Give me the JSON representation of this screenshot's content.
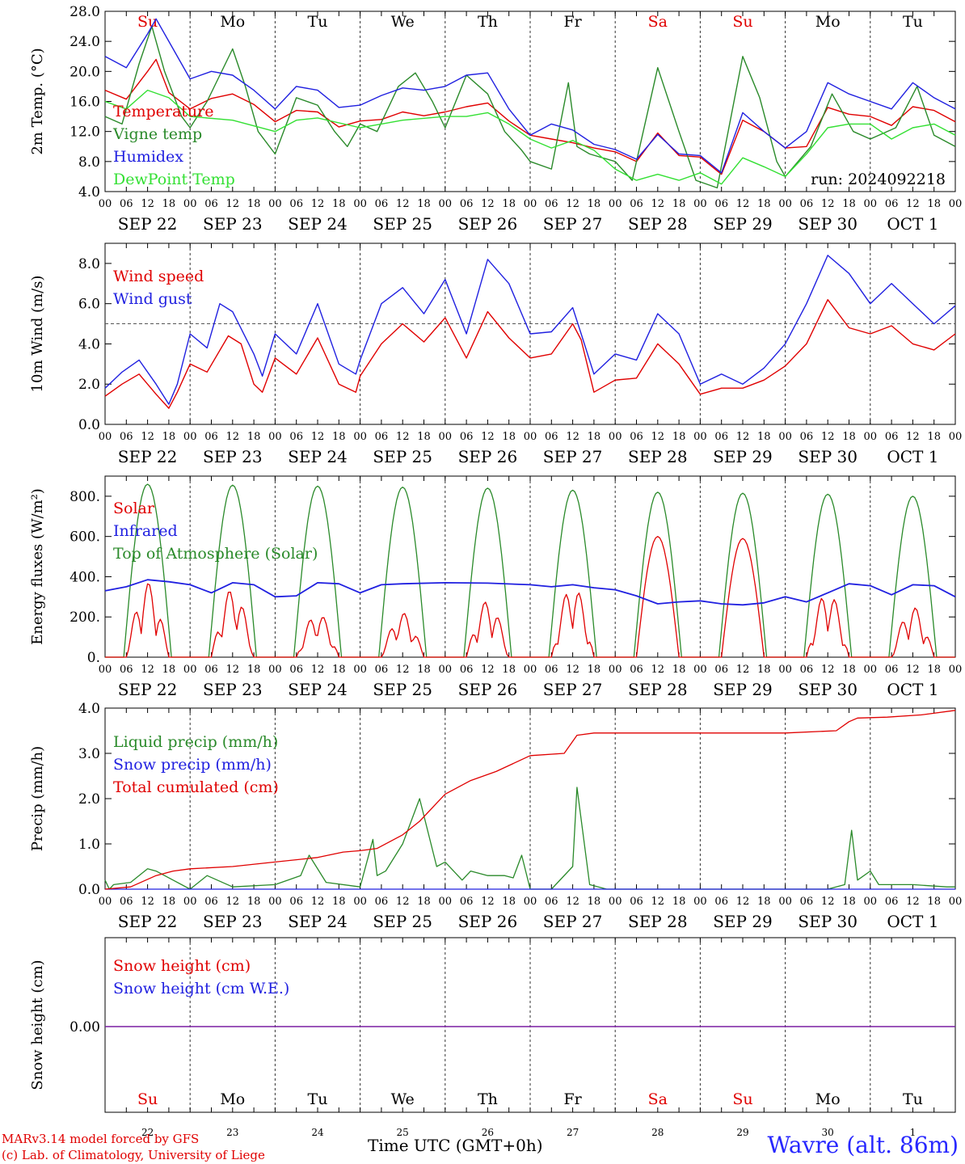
{
  "days": {
    "weekdays": [
      "Su",
      "Mo",
      "Tu",
      "We",
      "Th",
      "Fr",
      "Sa",
      "Su",
      "Mo",
      "Tu"
    ],
    "weekend_flags": [
      true,
      false,
      false,
      false,
      false,
      false,
      true,
      true,
      false,
      false
    ],
    "dates": [
      "SEP 22",
      "SEP 23",
      "SEP 24",
      "SEP 25",
      "SEP 26",
      "SEP 27",
      "SEP 28",
      "SEP 29",
      "SEP 30",
      "OCT  1"
    ],
    "day_numbers": [
      "22",
      "23",
      "24",
      "25",
      "26",
      "27",
      "28",
      "29",
      "30",
      "1"
    ],
    "hour_ticks": [
      "00",
      "06",
      "12",
      "18"
    ],
    "final_hour": "00"
  },
  "colors": {
    "red": "#e00000",
    "green": "#2a8a2a",
    "blue": "#2020e0",
    "lightgreen": "#33e033",
    "purple": "#7a1fa2"
  },
  "run_label": "run: 2024092218",
  "footer": {
    "credit_line1": "MARv3.14 model forced by GFS",
    "credit_line2": "(c) Lab. of Climatology, University of Liege",
    "time_label": "Time UTC (GMT+0h)",
    "station": "Wavre (alt. 86m)"
  },
  "chart_data": [
    {
      "type": "line",
      "ylabel": "2m Temp. (°C)",
      "ylim": [
        4,
        28
      ],
      "yticks": [
        "28.0",
        "24.0",
        "20.0",
        "16.0",
        "12.0",
        "8.0",
        "4.0"
      ],
      "x_unit": "days since SEP 22 00 UTC",
      "series": [
        {
          "name": "Temperature",
          "color": "red",
          "x": [
            0,
            0.25,
            0.5,
            0.6,
            0.75,
            1.0,
            1.25,
            1.5,
            1.75,
            2.0,
            2.25,
            2.5,
            2.75,
            3.0,
            3.25,
            3.5,
            3.75,
            4.0,
            4.25,
            4.5,
            4.75,
            5.0,
            5.25,
            5.5,
            5.75,
            6.0,
            6.25,
            6.5,
            6.75,
            7.0,
            7.25,
            7.5,
            7.75,
            8.0,
            8.25,
            8.5,
            8.75,
            9.0,
            9.25,
            9.5,
            9.75,
            10.0
          ],
          "values": [
            17.5,
            16.3,
            20.0,
            21.6,
            17.2,
            15.0,
            16.4,
            17.0,
            15.6,
            13.3,
            14.8,
            14.6,
            12.6,
            13.4,
            13.6,
            14.6,
            14.1,
            14.6,
            15.3,
            15.8,
            13.4,
            11.5,
            11.0,
            10.5,
            9.8,
            9.3,
            8.0,
            11.8,
            8.8,
            8.6,
            6.3,
            13.5,
            12.0,
            9.8,
            10.0,
            15.2,
            14.3,
            14.0,
            12.8,
            15.3,
            14.8,
            13.3
          ]
        },
        {
          "name": "Vigne temp",
          "color": "green",
          "x": [
            0,
            0.2,
            0.4,
            0.55,
            0.7,
            0.9,
            1.0,
            1.2,
            1.5,
            1.65,
            1.8,
            2.0,
            2.25,
            2.5,
            2.7,
            2.85,
            3.0,
            3.2,
            3.45,
            3.65,
            3.85,
            4.0,
            4.25,
            4.5,
            4.7,
            4.9,
            5.0,
            5.25,
            5.45,
            5.55,
            5.7,
            6.0,
            6.2,
            6.5,
            6.75,
            6.95,
            7.2,
            7.5,
            7.7,
            7.9,
            8.0,
            8.3,
            8.55,
            8.8,
            9.0,
            9.3,
            9.55,
            9.75,
            10.0
          ],
          "values": [
            14.0,
            13.0,
            21.0,
            26.0,
            20.0,
            14.0,
            12.5,
            16.0,
            23.0,
            18.0,
            12.0,
            9.0,
            16.5,
            15.5,
            12.0,
            10.0,
            13.0,
            12.0,
            18.0,
            19.8,
            16.0,
            12.5,
            19.5,
            17.0,
            12.0,
            9.5,
            8.0,
            7.0,
            18.5,
            10.0,
            9.0,
            8.0,
            5.5,
            20.5,
            12.0,
            5.5,
            4.5,
            22.0,
            16.5,
            8.0,
            6.0,
            10.0,
            17.0,
            12.0,
            11.0,
            12.5,
            18.0,
            11.5,
            10.0
          ]
        },
        {
          "name": "Humidex",
          "color": "blue",
          "x": [
            0,
            0.25,
            0.5,
            0.6,
            0.8,
            1.0,
            1.25,
            1.5,
            1.75,
            2.0,
            2.25,
            2.5,
            2.75,
            3.0,
            3.25,
            3.5,
            3.75,
            4.0,
            4.25,
            4.5,
            4.75,
            5.0,
            5.25,
            5.5,
            5.75,
            6.0,
            6.25,
            6.5,
            6.75,
            7.0,
            7.25,
            7.5,
            7.75,
            8.0,
            8.25,
            8.5,
            8.75,
            9.0,
            9.25,
            9.5,
            9.75,
            10.0
          ],
          "values": [
            22.0,
            20.5,
            25.0,
            27.0,
            23.0,
            19.0,
            20.0,
            19.5,
            17.5,
            15.0,
            18.0,
            17.5,
            15.2,
            15.5,
            16.8,
            17.8,
            17.5,
            18.0,
            19.5,
            19.8,
            15.0,
            11.5,
            13.0,
            12.2,
            10.3,
            9.6,
            8.3,
            11.6,
            9.0,
            8.8,
            6.5,
            14.5,
            12.0,
            9.8,
            12.0,
            18.5,
            17.0,
            16.0,
            15.0,
            18.5,
            16.5,
            15.0
          ]
        },
        {
          "name": "DewPoint Temp",
          "color": "lightgreen",
          "x": [
            0,
            0.25,
            0.5,
            0.75,
            1.0,
            1.5,
            2.0,
            2.25,
            2.5,
            3.0,
            3.25,
            3.5,
            4.0,
            4.25,
            4.5,
            4.75,
            5.0,
            5.25,
            5.5,
            5.75,
            6.0,
            6.25,
            6.5,
            6.75,
            7.0,
            7.25,
            7.5,
            7.75,
            8.0,
            8.25,
            8.5,
            8.75,
            9.0,
            9.25,
            9.5,
            9.75,
            10.0
          ],
          "values": [
            16.0,
            15.0,
            17.5,
            16.5,
            14.0,
            13.5,
            12.0,
            13.5,
            13.8,
            12.5,
            13.0,
            13.5,
            14.0,
            14.0,
            14.5,
            13.0,
            11.0,
            9.8,
            10.8,
            9.5,
            7.0,
            5.5,
            6.3,
            5.5,
            6.5,
            5.0,
            8.5,
            7.3,
            6.0,
            9.0,
            12.5,
            13.0,
            13.0,
            11.0,
            12.5,
            13.0,
            11.5
          ]
        }
      ]
    },
    {
      "type": "line",
      "ylabel": "10m Wind (m/s)",
      "ylim": [
        0,
        9
      ],
      "yticks": [
        "8.0",
        "6.0",
        "4.0",
        "2.0",
        "0.0"
      ],
      "reference_line": 5.0,
      "series": [
        {
          "name": "Wind speed",
          "color": "red",
          "x": [
            0,
            0.2,
            0.4,
            0.6,
            0.75,
            0.85,
            1.0,
            1.2,
            1.45,
            1.6,
            1.75,
            1.85,
            2.0,
            2.25,
            2.5,
            2.75,
            2.95,
            3.0,
            3.25,
            3.5,
            3.75,
            4.0,
            4.25,
            4.5,
            4.75,
            5.0,
            5.25,
            5.5,
            5.6,
            5.75,
            6.0,
            6.25,
            6.5,
            6.75,
            7.0,
            7.25,
            7.5,
            7.75,
            8.0,
            8.25,
            8.5,
            8.75,
            9.0,
            9.25,
            9.5,
            9.75,
            10.0
          ],
          "values": [
            1.4,
            2.0,
            2.5,
            1.5,
            0.8,
            1.6,
            3.0,
            2.6,
            4.4,
            4.0,
            2.0,
            1.6,
            3.3,
            2.5,
            4.3,
            2.0,
            1.6,
            2.4,
            4.0,
            5.0,
            4.1,
            5.3,
            3.3,
            5.6,
            4.3,
            3.3,
            3.5,
            5.0,
            4.2,
            1.6,
            2.2,
            2.3,
            4.0,
            3.0,
            1.5,
            1.8,
            1.8,
            2.2,
            2.9,
            4.0,
            6.2,
            4.8,
            4.5,
            4.9,
            4.0,
            3.7,
            4.5
          ]
        },
        {
          "name": "Wind gust",
          "color": "blue",
          "x": [
            0,
            0.2,
            0.4,
            0.6,
            0.75,
            0.85,
            1.0,
            1.2,
            1.35,
            1.5,
            1.75,
            1.85,
            2.0,
            2.25,
            2.5,
            2.75,
            2.95,
            3.0,
            3.25,
            3.5,
            3.75,
            4.0,
            4.25,
            4.5,
            4.75,
            5.0,
            5.25,
            5.5,
            5.6,
            5.75,
            6.0,
            6.25,
            6.5,
            6.75,
            7.0,
            7.25,
            7.5,
            7.75,
            8.0,
            8.25,
            8.5,
            8.75,
            9.0,
            9.25,
            9.5,
            9.75,
            10.0
          ],
          "values": [
            1.8,
            2.6,
            3.2,
            2.0,
            1.0,
            2.0,
            4.5,
            3.8,
            6.0,
            5.6,
            3.5,
            2.4,
            4.5,
            3.5,
            6.0,
            3.0,
            2.5,
            3.2,
            6.0,
            6.8,
            5.5,
            7.2,
            4.5,
            8.2,
            7.0,
            4.5,
            4.6,
            5.8,
            4.5,
            2.5,
            3.5,
            3.2,
            5.5,
            4.5,
            2.0,
            2.5,
            2.0,
            2.8,
            4.0,
            6.0,
            8.4,
            7.5,
            6.0,
            7.0,
            6.0,
            5.0,
            5.9
          ]
        }
      ]
    },
    {
      "type": "line",
      "ylabel": "Energy fluxes (W/m²)",
      "ylim": [
        0,
        900
      ],
      "yticks": [
        "800.",
        "600.",
        "400.",
        "200.",
        "0."
      ],
      "series": [
        {
          "name": "Solar",
          "color": "red",
          "day_peaks": [
            370,
            340,
            220,
            220,
            280,
            360,
            600,
            590,
            330,
            250
          ]
        },
        {
          "name": "Infrared",
          "color": "blue",
          "x": [
            0,
            0.25,
            0.5,
            0.75,
            1.0,
            1.25,
            1.5,
            1.75,
            2.0,
            2.25,
            2.5,
            2.75,
            3.0,
            3.25,
            3.5,
            4.0,
            4.5,
            5.0,
            5.25,
            5.5,
            5.75,
            6.0,
            6.25,
            6.5,
            6.75,
            7.0,
            7.25,
            7.5,
            7.75,
            8.0,
            8.25,
            8.5,
            8.75,
            9.0,
            9.25,
            9.5,
            9.75,
            10.0
          ],
          "values": [
            330,
            350,
            385,
            375,
            360,
            320,
            370,
            360,
            300,
            305,
            370,
            365,
            320,
            360,
            365,
            370,
            368,
            360,
            350,
            360,
            345,
            335,
            305,
            265,
            275,
            280,
            265,
            260,
            270,
            300,
            275,
            320,
            365,
            355,
            310,
            360,
            355,
            300
          ]
        },
        {
          "name": "Top of Atmosphere (Solar)",
          "color": "green",
          "day_peaks": [
            860,
            855,
            850,
            845,
            840,
            830,
            820,
            815,
            810,
            800
          ]
        }
      ]
    },
    {
      "type": "line",
      "ylabel": "Precip (mm/h)",
      "ylim": [
        0,
        4
      ],
      "yticks": [
        "4.0",
        "3.0",
        "2.0",
        "1.0",
        "0.0"
      ],
      "series": [
        {
          "name": "Liquid precip (mm/h)",
          "color": "green",
          "x": [
            0,
            0.05,
            0.1,
            0.3,
            0.5,
            0.6,
            0.8,
            1.0,
            1.2,
            1.5,
            2.0,
            2.3,
            2.4,
            2.6,
            3.0,
            3.15,
            3.2,
            3.3,
            3.5,
            3.7,
            3.9,
            4.0,
            4.2,
            4.3,
            4.5,
            4.7,
            4.8,
            4.9,
            5.0,
            5.25,
            5.5,
            5.55,
            5.7,
            5.9,
            6.0,
            8.5,
            8.7,
            8.78,
            8.85,
            9.0,
            9.1,
            9.5,
            9.9,
            10.0
          ],
          "values": [
            0.2,
            0.0,
            0.1,
            0.15,
            0.45,
            0.4,
            0.2,
            0.0,
            0.3,
            0.05,
            0.1,
            0.3,
            0.75,
            0.15,
            0.05,
            1.1,
            0.3,
            0.4,
            1.0,
            2.0,
            0.5,
            0.6,
            0.2,
            0.4,
            0.3,
            0.3,
            0.25,
            0.75,
            0.0,
            0.0,
            0.5,
            2.25,
            0.1,
            0.0,
            0.0,
            0.0,
            0.1,
            1.3,
            0.2,
            0.4,
            0.1,
            0.1,
            0.05,
            0.05
          ]
        },
        {
          "name": "Snow precip (mm/h)",
          "color": "blue",
          "x": [
            0,
            10
          ],
          "values": [
            0,
            0
          ]
        },
        {
          "name": "Total cumulated (cm)",
          "color": "red",
          "x": [
            0,
            0.3,
            0.6,
            0.8,
            1.0,
            1.5,
            2.0,
            2.5,
            2.8,
            3.0,
            3.2,
            3.5,
            3.7,
            3.9,
            4.0,
            4.3,
            4.6,
            5.0,
            5.4,
            5.55,
            5.75,
            6.0,
            7.0,
            8.0,
            8.6,
            8.75,
            8.85,
            9.2,
            9.6,
            10.0
          ],
          "values": [
            0.0,
            0.05,
            0.3,
            0.4,
            0.45,
            0.5,
            0.6,
            0.7,
            0.82,
            0.85,
            0.9,
            1.2,
            1.5,
            1.9,
            2.1,
            2.4,
            2.6,
            2.95,
            3.0,
            3.4,
            3.45,
            3.45,
            3.45,
            3.45,
            3.5,
            3.7,
            3.78,
            3.8,
            3.85,
            3.95
          ]
        }
      ]
    },
    {
      "type": "line",
      "ylabel": "Snow height (cm)",
      "ytick": "0.00",
      "series": [
        {
          "name": "Snow height (cm)",
          "color": "red",
          "values": [
            0,
            0
          ]
        },
        {
          "name": "Snow height (cm W.E.)",
          "color": "blue",
          "values": [
            0,
            0
          ]
        }
      ]
    }
  ]
}
